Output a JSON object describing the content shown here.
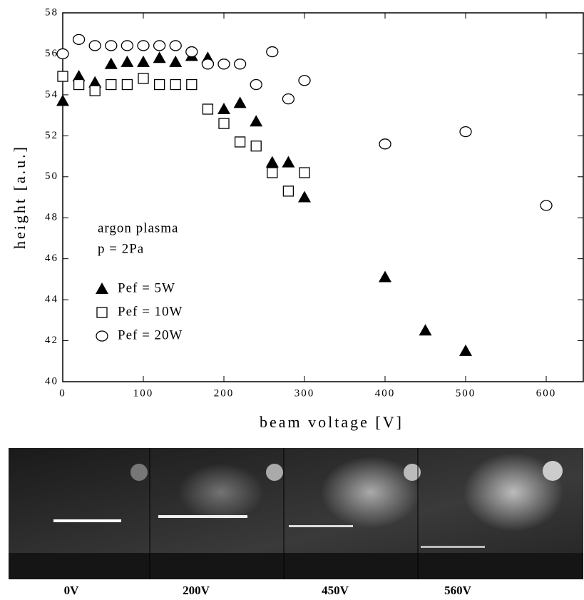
{
  "chart_data": {
    "type": "scatter",
    "xlabel": "beam voltage [V]",
    "ylabel": "height [a.u.]",
    "annotations": [
      "argon plasma",
      "p = 2Pa"
    ],
    "xlim": [
      0,
      646
    ],
    "ylim": [
      40,
      58
    ],
    "xticks": [
      0,
      100,
      200,
      300,
      400,
      500,
      600
    ],
    "yticks": [
      40,
      42,
      44,
      46,
      48,
      50,
      52,
      54,
      56,
      58
    ],
    "series": [
      {
        "name": "Pef = 5W",
        "marker": "triangle",
        "color": "#000000",
        "x": [
          0,
          20,
          40,
          60,
          80,
          100,
          120,
          140,
          160,
          180,
          200,
          220,
          240,
          260,
          280,
          300,
          400,
          450,
          500
        ],
        "values": [
          53.7,
          54.9,
          54.6,
          55.5,
          55.6,
          55.6,
          55.8,
          55.6,
          55.9,
          55.8,
          53.3,
          53.6,
          52.7,
          50.7,
          50.7,
          49.0,
          45.1,
          42.5,
          41.5
        ]
      },
      {
        "name": "Pef = 10W",
        "marker": "square",
        "color": "#000000",
        "x": [
          0,
          20,
          40,
          60,
          80,
          100,
          120,
          140,
          160,
          180,
          200,
          220,
          240,
          260,
          280,
          300
        ],
        "values": [
          54.9,
          54.5,
          54.2,
          54.5,
          54.5,
          54.8,
          54.5,
          54.5,
          54.5,
          53.3,
          52.6,
          51.7,
          51.5,
          50.2,
          49.3,
          50.2
        ]
      },
      {
        "name": "Pef = 20W",
        "marker": "circle",
        "color": "#000000",
        "x": [
          0,
          20,
          40,
          60,
          80,
          100,
          120,
          140,
          160,
          180,
          200,
          220,
          240,
          260,
          280,
          300,
          400,
          500,
          600
        ],
        "values": [
          56.0,
          56.7,
          56.4,
          56.4,
          56.4,
          56.4,
          56.4,
          56.4,
          56.1,
          55.5,
          55.5,
          55.5,
          54.5,
          56.1,
          53.8,
          54.7,
          51.6,
          52.2,
          48.6
        ]
      }
    ]
  },
  "images": {
    "captions": [
      "0V",
      "200V",
      "450V",
      "560V"
    ]
  }
}
